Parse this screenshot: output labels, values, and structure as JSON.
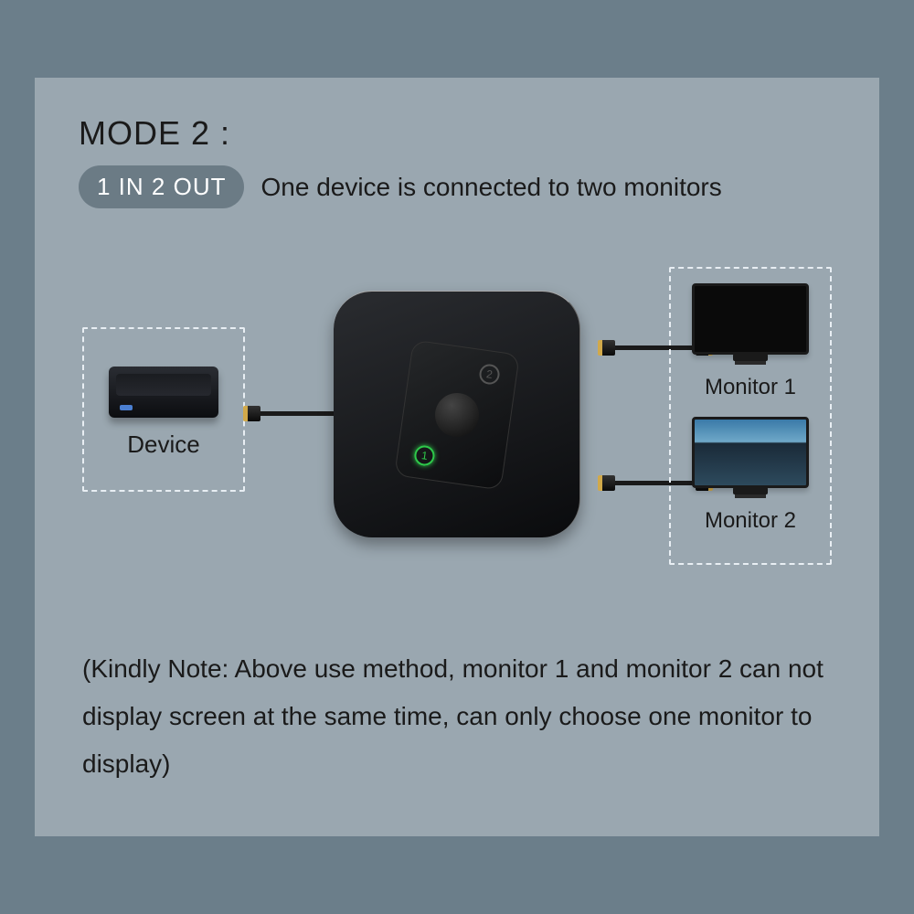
{
  "type": "infographic",
  "background_outer": "#6b7e8a",
  "background_card": "#9aa7b0",
  "text_color": "#1a1a1a",
  "title": "MODE 2 :",
  "title_fontsize": 36,
  "pill": {
    "text": "1 IN  2  OUT",
    "bg": "#6b7b85",
    "fg": "#ffffff",
    "fontsize": 26
  },
  "subtitle": "One device is connected to two monitors",
  "subtitle_fontsize": 28,
  "diagram": {
    "dashed_border_color": "#e8eef3",
    "device_label": "Device",
    "monitor1_label": "Monitor 1",
    "monitor2_label": "Monitor 2",
    "label_fontsize": 26,
    "label_sm_fontsize": 24,
    "hub": {
      "body_color": "#0a0b0d",
      "border_radius": 42,
      "led1_color": "#555555",
      "led2_color": "#2ec94a"
    },
    "cable_color": "#1a1a1a",
    "connector_gold": "#d1a94a"
  },
  "note": "(Kindly Note:  Above use method, monitor 1 and monitor 2 can not display screen at the same time, can only choose one monitor to display)",
  "note_fontsize": 28,
  "note_lineheight": 1.85
}
